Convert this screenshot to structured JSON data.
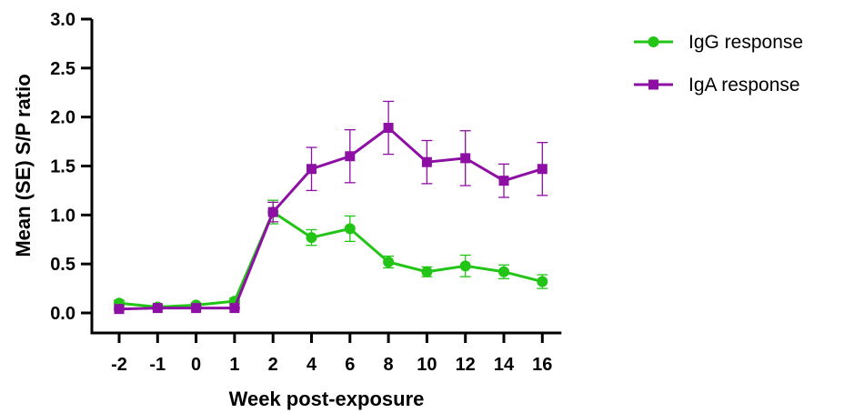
{
  "chart_data": {
    "type": "line",
    "xlabel": "Week post-exposure",
    "ylabel": "Mean (SE) S/P ratio",
    "categories": [
      "-2",
      "-1",
      "0",
      "1",
      "2",
      "4",
      "6",
      "8",
      "10",
      "12",
      "14",
      "16"
    ],
    "yticks": [
      "0.0",
      "0.5",
      "1.0",
      "1.5",
      "2.0",
      "2.5",
      "3.0"
    ],
    "ylim": [
      0,
      3
    ],
    "grid": false,
    "legend_position": "top-right",
    "series": [
      {
        "name": "IgG response",
        "color": "#22c516",
        "marker": "circle",
        "values": [
          0.1,
          0.06,
          0.08,
          0.12,
          1.03,
          0.77,
          0.86,
          0.52,
          0.42,
          0.48,
          0.42,
          0.32
        ],
        "errors": [
          0.03,
          0.02,
          0.02,
          0.03,
          0.12,
          0.08,
          0.13,
          0.06,
          0.05,
          0.11,
          0.07,
          0.07
        ]
      },
      {
        "name": "IgA response",
        "color": "#8e0fa3",
        "marker": "square",
        "values": [
          0.04,
          0.05,
          0.05,
          0.05,
          1.03,
          1.47,
          1.6,
          1.89,
          1.54,
          1.58,
          1.35,
          1.47
        ],
        "errors": [
          0.01,
          0.01,
          0.01,
          0.01,
          0.1,
          0.22,
          0.27,
          0.27,
          0.22,
          0.28,
          0.17,
          0.27
        ]
      }
    ]
  }
}
